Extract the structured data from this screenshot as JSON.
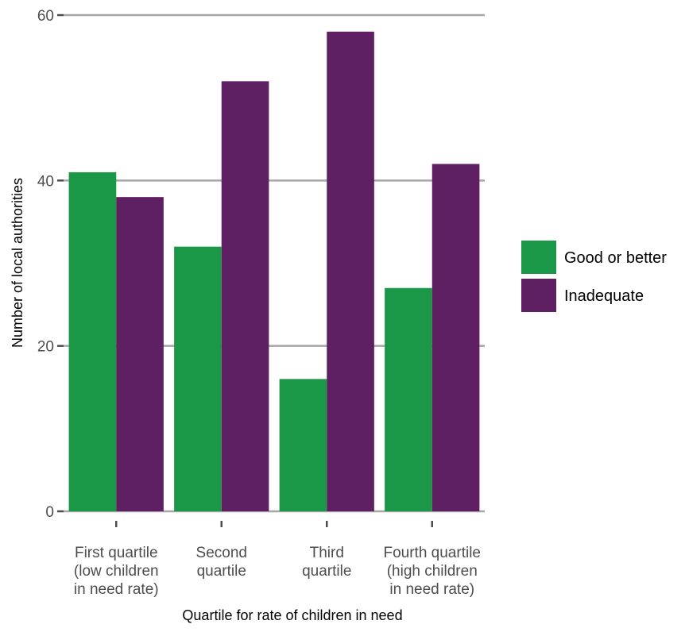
{
  "chart_data": {
    "type": "bar",
    "title": "",
    "xlabel": "Quartile for rate of children in need",
    "ylabel": "Number of local authorities",
    "categories": [
      [
        "First quartile",
        "(low children",
        "in need rate)"
      ],
      [
        "Second",
        "quartile"
      ],
      [
        "Third",
        "quartile"
      ],
      [
        "Fourth quartile",
        "(high children",
        "in need rate)"
      ]
    ],
    "series": [
      {
        "name": "Good or better",
        "color": "#1b9847",
        "values": [
          41,
          32,
          16,
          27
        ]
      },
      {
        "name": "Inadequate",
        "color": "#5e2063",
        "values": [
          38,
          52,
          58,
          42
        ]
      }
    ],
    "ylim": [
      0,
      60
    ],
    "yticks": [
      0,
      20,
      40,
      60
    ],
    "grid": true,
    "legend_position": "right"
  }
}
